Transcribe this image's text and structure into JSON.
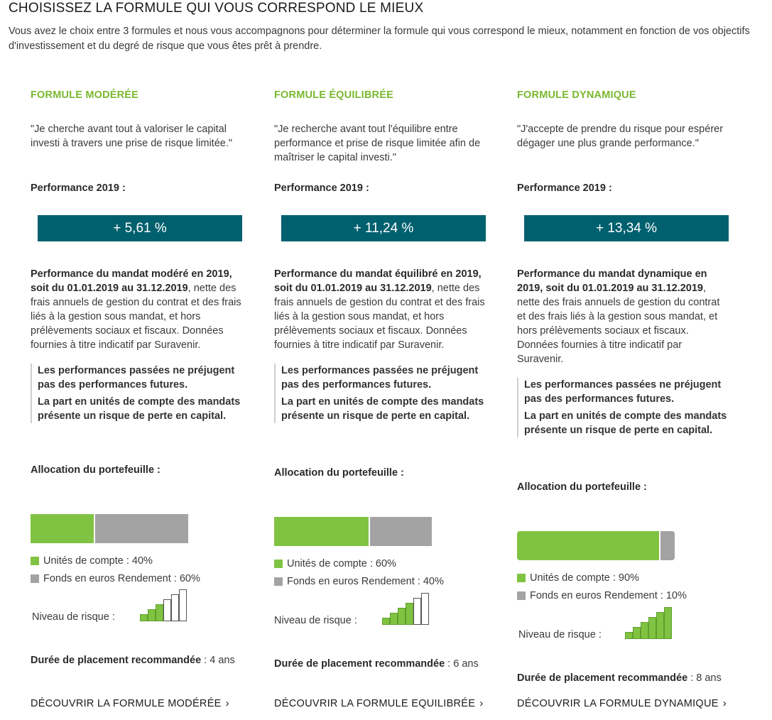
{
  "header": {
    "title": "CHOISISSEZ LA FORMULE QUI VOUS CORRESPOND LE MIEUX",
    "intro": "Vous avez le choix entre 3 formules et nous vous accompagnons pour déterminer la formule qui vous correspond le mieux, notamment en fonction de vos objectifs d'investissement et du degré de risque que vous êtes prêt à prendre."
  },
  "colors": {
    "accent_green": "#7ab830",
    "teal": "#00606e",
    "uc_green": "#80c342",
    "fonds_grey": "#a3a3a3"
  },
  "formules": [
    {
      "title": "FORMULE MODÉRÉE",
      "quote": "\"Je cherche avant tout à valoriser le capital investi à travers une prise de risque limitée.\"",
      "perf_label": "Performance 2019 :",
      "perf_value": "+ 5,61 %",
      "desc_bold": "Performance du mandat modéré en 2019, soit du 01.01.2019 au 31.12.2019",
      "desc_rest": ", nette des frais annuels de gestion du contrat et des frais liés à la gestion sous mandat, et hors prélèvements sociaux et fiscaux. Données fournies à titre indicatif par Suravenir.",
      "warning_1": "Les performances passées ne préjugent pas des performances futures.",
      "warning_2": "La part en unités de compte des mandats présente un risque de perte en capital.",
      "alloc_label": "Allocation du portefeuille :",
      "uc_pct": 40,
      "fe_pct": 60,
      "legend_uc": "Unités de compte : 40%",
      "legend_fe": "Fonds en euros Rendement : 60%",
      "risk_label": "Niveau de risque :",
      "risk_level": 3,
      "risk_max": 6,
      "duration_bold": "Durée de placement recommandée",
      "duration_rest": " : 4 ans",
      "cta": "DÉCOUVRIR LA FORMULE MODÉRÉE",
      "chevron_icon": "chevron-right-icon"
    },
    {
      "title": "FORMULE ÉQUILIBRÉE",
      "quote": "\"Je recherche avant tout l'équilibre entre performance et prise de risque limitée afin de maîtriser le capital investi.\"",
      "perf_label": "Performance 2019 :",
      "perf_value": "+ 11,24 %",
      "desc_bold": "Performance du mandat équilibré en 2019, soit du 01.01.2019 au 31.12.2019",
      "desc_rest": ", nette des frais annuels de gestion du contrat et des frais liés à la gestion sous mandat, et hors prélèvements sociaux et fiscaux. Données fournies à titre indicatif par Suravenir.",
      "warning_1": "Les performances passées ne préjugent pas des performances futures.",
      "warning_2": "La part en unités de compte des mandats présente un risque de perte en capital.",
      "alloc_label": "Allocation du portefeuille :",
      "uc_pct": 60,
      "fe_pct": 40,
      "legend_uc": "Unités de compte : 60%",
      "legend_fe": "Fonds en euros Rendement : 40%",
      "risk_label": "Niveau de risque :",
      "risk_level": 4,
      "risk_max": 6,
      "duration_bold": "Durée de placement recommandée",
      "duration_rest": " : 6 ans",
      "cta": "DÉCOUVRIR LA FORMULE EQUILIBRÉE",
      "chevron_icon": "chevron-right-icon"
    },
    {
      "title": "FORMULE DYNAMIQUE",
      "quote": "\"J'accepte de prendre du risque pour espérer dégager une plus grande performance.\"",
      "perf_label": "Performance 2019 :",
      "perf_value": "+ 13,34 %",
      "desc_bold": "Performance du mandat dynamique en 2019, soit du 01.01.2019 au 31.12.2019",
      "desc_rest": ", nette des frais annuels de gestion du contrat et des frais liés à la gestion sous mandat, et hors prélèvements sociaux et fiscaux. Données fournies à titre indicatif par Suravenir.",
      "warning_1": "Les performances passées ne préjugent pas des performances futures.",
      "warning_2": "La part en unités de compte des mandats présente un risque de perte en capital.",
      "alloc_label": "Allocation du portefeuille :",
      "uc_pct": 90,
      "fe_pct": 10,
      "legend_uc": "Unités de compte : 90%",
      "legend_fe": "Fonds en euros Rendement : 10%",
      "risk_label": "Niveau de risque :",
      "risk_level": 6,
      "risk_max": 6,
      "duration_bold": "Durée de placement recommandée",
      "duration_rest": " : 8 ans",
      "cta": "DÉCOUVRIR LA FORMULE DYNAMIQUE",
      "chevron_icon": "chevron-right-icon"
    }
  ]
}
